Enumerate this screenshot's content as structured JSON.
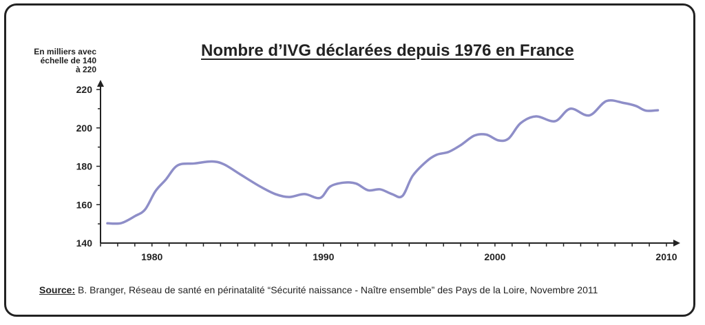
{
  "chart_data": {
    "type": "line",
    "title": "Nombre d’IVG déclarées depuis 1976 en France",
    "ylabel_lines": [
      "En milliers avec",
      "échelle de 140",
      "à 220"
    ],
    "xlim": [
      1977,
      2010
    ],
    "ylim": [
      140,
      220
    ],
    "x_ticks": [
      1980,
      1990,
      2000,
      2010
    ],
    "y_ticks": [
      140,
      160,
      180,
      200,
      220
    ],
    "grid": false,
    "line_color": "#8E8EC8",
    "series": [
      {
        "x": [
          1977.4,
          1978.2,
          1979.0,
          1979.6,
          1980.2,
          1980.8,
          1981.5,
          1982.5,
          1983.5,
          1984.2,
          1985.2,
          1986.3,
          1987.2,
          1988.0,
          1988.9,
          1989.8,
          1990.4,
          1991.2,
          1991.9,
          1992.6,
          1993.3,
          1994.0,
          1994.6,
          1995.2,
          1996.0,
          1996.6,
          1997.3,
          1998.0,
          1998.8,
          1999.5,
          2000.2,
          2000.8,
          2001.5,
          2002.4,
          2003.5,
          2004.4,
          2005.5,
          2006.5,
          2007.5,
          2008.2,
          2008.8,
          2009.5
        ],
        "y": [
          150.3,
          150.4,
          154.0,
          157.5,
          167.0,
          173.0,
          180.5,
          181.5,
          182.5,
          181.0,
          175.5,
          169.5,
          165.5,
          164.0,
          165.5,
          163.5,
          169.5,
          171.5,
          171.0,
          167.5,
          168.0,
          165.5,
          164.5,
          175.0,
          182.5,
          186.0,
          187.5,
          191.0,
          196.0,
          196.5,
          193.5,
          194.5,
          202.5,
          206.0,
          203.5,
          210.0,
          206.5,
          214.0,
          213.0,
          211.5,
          209.0,
          209.2
        ]
      }
    ],
    "source_label": "Source:",
    "source_text": " B. Branger, Réseau de santé en périnatalité “Sécurité naissance - Naître ensemble” des Pays de la Loire, Novembre 2011"
  }
}
